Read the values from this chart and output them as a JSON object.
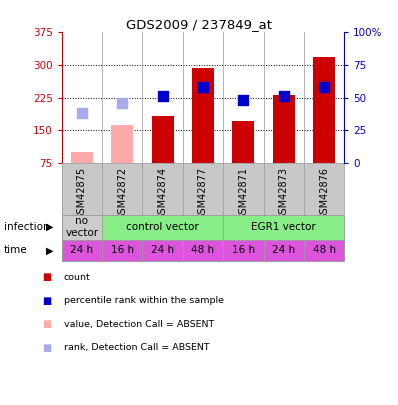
{
  "title": "GDS2009 / 237849_at",
  "samples": [
    "GSM42875",
    "GSM42872",
    "GSM42874",
    "GSM42877",
    "GSM42871",
    "GSM42873",
    "GSM42876"
  ],
  "bar_values": [
    100,
    163,
    183,
    292,
    170,
    232,
    318
  ],
  "bar_colors": [
    "#ffaaaa",
    "#ffaaaa",
    "#cc0000",
    "#cc0000",
    "#cc0000",
    "#cc0000",
    "#cc0000"
  ],
  "rank_values": [
    38,
    46,
    51,
    58,
    48,
    51,
    58
  ],
  "rank_absent": [
    true,
    true,
    false,
    false,
    false,
    false,
    false
  ],
  "ylim_left": [
    75,
    375
  ],
  "ylim_right": [
    0,
    100
  ],
  "yticks_left": [
    75,
    150,
    225,
    300,
    375
  ],
  "yticks_right": [
    0,
    25,
    50,
    75,
    100
  ],
  "time_labels": [
    "24 h",
    "16 h",
    "24 h",
    "48 h",
    "16 h",
    "24 h",
    "48 h"
  ],
  "time_color": "#dd55dd",
  "legend_items": [
    {
      "label": "count",
      "color": "#cc0000"
    },
    {
      "label": "percentile rank within the sample",
      "color": "#0000cc"
    },
    {
      "label": "value, Detection Call = ABSENT",
      "color": "#ffaaaa"
    },
    {
      "label": "rank, Detection Call = ABSENT",
      "color": "#aaaaee"
    }
  ],
  "left_color": "#cc0000",
  "right_color": "#0000cc",
  "bar_width": 0.55,
  "rank_square_size": 55,
  "background_color": "#ffffff"
}
